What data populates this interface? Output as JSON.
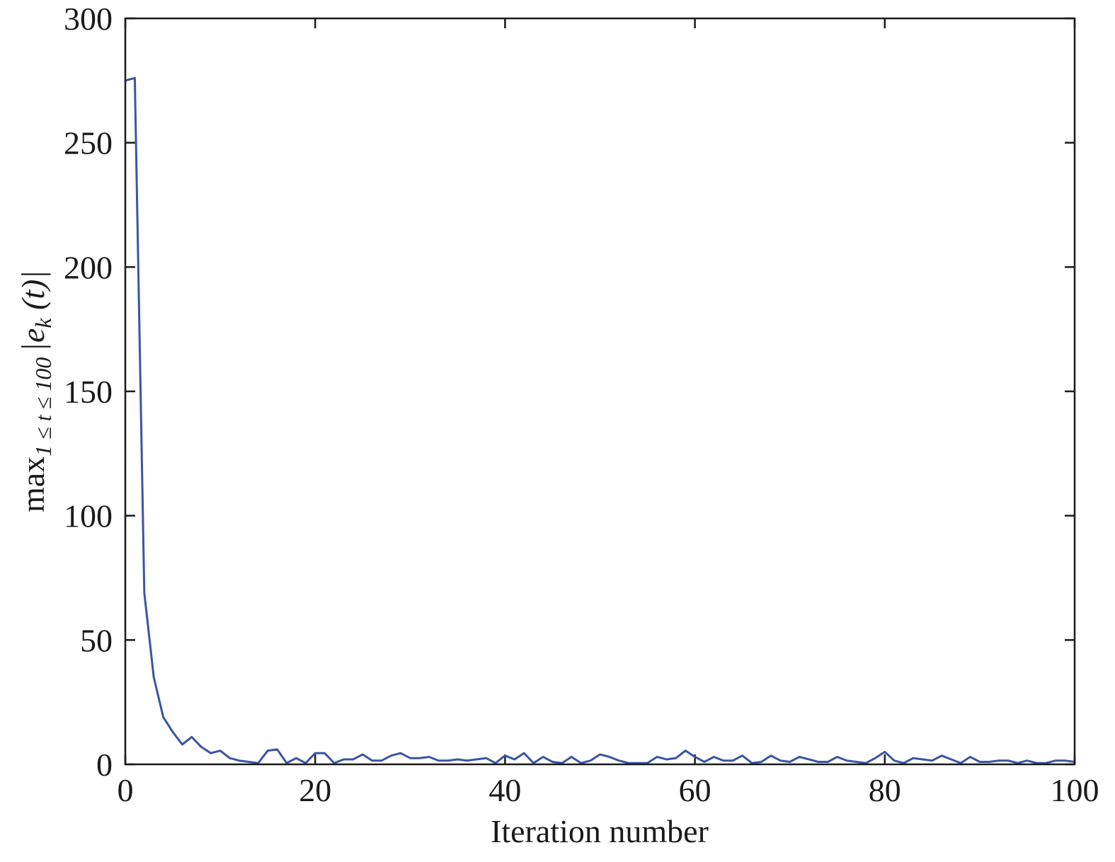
{
  "chart_data": {
    "type": "line",
    "title": "",
    "xlabel": "Iteration number",
    "ylabel": {
      "op": "max",
      "subscript": "1 ≤ t ≤ 100",
      "expr_open": "|e",
      "expr_sub": "k",
      "expr_close": " (t)|"
    },
    "xlim": [
      0,
      100
    ],
    "ylim": [
      0,
      300
    ],
    "xticks": [
      "0",
      "20",
      "40",
      "60",
      "80",
      "100"
    ],
    "yticks": [
      "0",
      "50",
      "100",
      "150",
      "200",
      "250",
      "300"
    ],
    "grid": false,
    "line_color": "#3b55a3",
    "series": [
      {
        "x": [
          0,
          1,
          2,
          3,
          4,
          5,
          6,
          7,
          8,
          9,
          10,
          11,
          12,
          13,
          14,
          15,
          16,
          17,
          18,
          19,
          20,
          21,
          22,
          23,
          24,
          25,
          26,
          27,
          28,
          29,
          30,
          31,
          32,
          33,
          34,
          35,
          36,
          37,
          38,
          39,
          40,
          41,
          42,
          43,
          44,
          45,
          46,
          47,
          48,
          49,
          50,
          51,
          52,
          53,
          54,
          55,
          56,
          57,
          58,
          59,
          60,
          61,
          62,
          63,
          64,
          65,
          66,
          67,
          68,
          69,
          70,
          71,
          72,
          73,
          74,
          75,
          76,
          77,
          78,
          79,
          80,
          81,
          82,
          83,
          84,
          85,
          86,
          87,
          88,
          89,
          90,
          91,
          92,
          93,
          94,
          95,
          96,
          97,
          98,
          99,
          100
        ],
        "y": [
          275,
          276,
          69,
          35,
          19,
          13,
          8,
          11,
          7,
          4.5,
          5.5,
          2.5,
          1.5,
          1,
          0.5,
          5.5,
          6,
          0.5,
          2.5,
          0.5,
          4.5,
          4.5,
          0.5,
          2,
          2,
          4,
          1.5,
          1.5,
          3.5,
          4.5,
          2.5,
          2.5,
          3,
          1.5,
          1.5,
          2,
          1.5,
          2,
          2.5,
          0.5,
          3.5,
          2,
          4.5,
          0.5,
          3,
          1,
          0.5,
          3,
          0.5,
          1.5,
          4,
          3,
          1.5,
          0.5,
          0.5,
          0.5,
          3,
          2,
          2.5,
          5.5,
          3,
          1,
          3,
          1.5,
          1.5,
          3.5,
          0.5,
          1,
          3.5,
          1.5,
          1,
          3,
          2,
          1,
          1,
          3,
          1.5,
          1,
          0.5,
          2.5,
          5,
          1.5,
          0.5,
          2.5,
          2,
          1.5,
          3.5,
          2,
          0.5,
          3,
          1,
          1,
          1.5,
          1.5,
          0.5,
          1.5,
          0.5,
          0.5,
          1.5,
          1.5,
          1
        ]
      }
    ]
  }
}
